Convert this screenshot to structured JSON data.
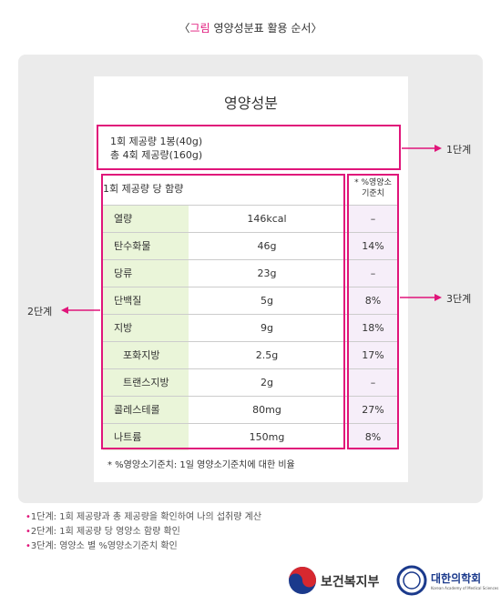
{
  "caption": {
    "open": "〈",
    "label": "그림",
    "text": "영양성분표 활용 순서",
    "close": "〉"
  },
  "label": {
    "title": "영양성분",
    "serving": [
      "1회 제공량 1봉(40g)",
      "총 4회 제공량(160g)"
    ],
    "table": {
      "header": "1회 제공량 당 함량",
      "dv_header": [
        "* %영양소",
        "기준치"
      ],
      "rows": [
        {
          "name": "열량",
          "amount": "146kcal",
          "dv": "–"
        },
        {
          "name": "탄수화물",
          "amount": "46g",
          "dv": "14%"
        },
        {
          "name": "당류",
          "amount": "23g",
          "dv": "–"
        },
        {
          "name": "단백질",
          "amount": "5g",
          "dv": "8%"
        },
        {
          "name": "지방",
          "amount": "9g",
          "dv": "18%"
        },
        {
          "name": "포화지방",
          "amount": "2.5g",
          "dv": "17%",
          "indent": true
        },
        {
          "name": "트랜스지방",
          "amount": "2g",
          "dv": "–",
          "indent": true
        },
        {
          "name": "콜레스테롤",
          "amount": "80mg",
          "dv": "27%"
        },
        {
          "name": "나트륨",
          "amount": "150mg",
          "dv": "8%"
        }
      ]
    },
    "footnote": "* %영양소기준치: 1일 영양소기준치에 대한 비율"
  },
  "steps": [
    "1단계",
    "2단계",
    "3단계"
  ],
  "notes": [
    "1단계: 1회 제공량과 총 제공량을 확인하여 나의 섭취량 계산",
    "2단계: 1회 제공량 당 영양소 함량 확인",
    "3단계: 영양소 별 %영양소기준치 확인"
  ],
  "logos": {
    "ministry": "보건복지부",
    "academy": "대한의학회",
    "academy_en": "Korean Academy of Medical Sciences"
  }
}
